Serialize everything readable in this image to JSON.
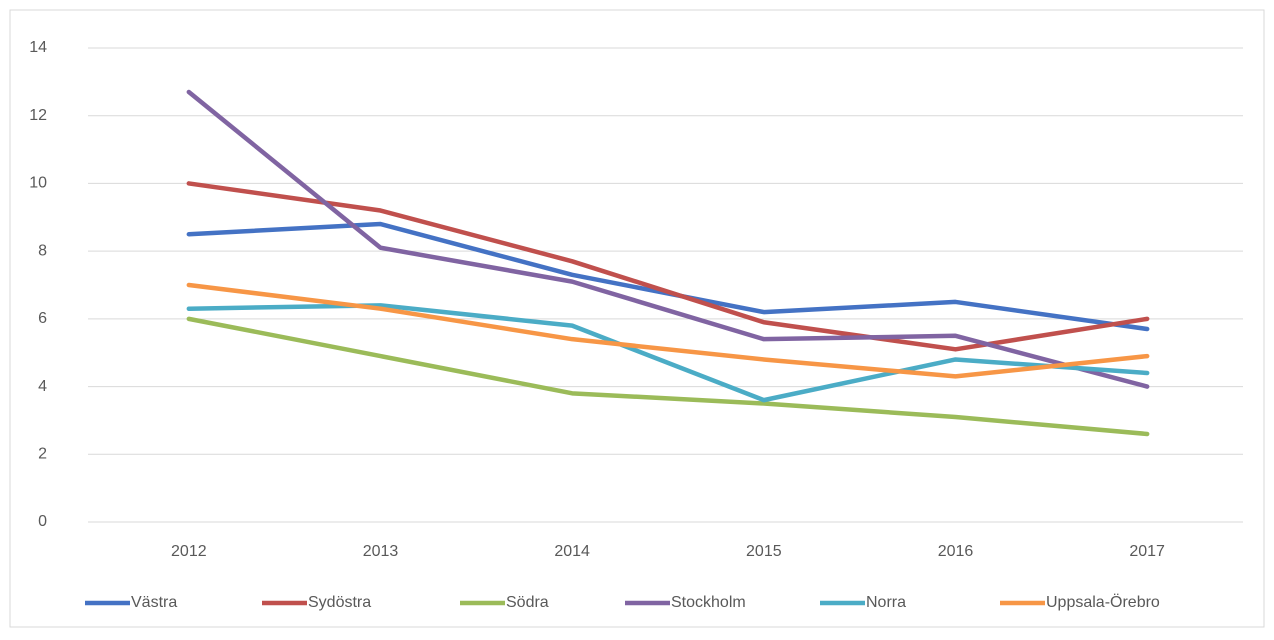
{
  "chart_data": {
    "type": "line",
    "categories": [
      "2012",
      "2013",
      "2014",
      "2015",
      "2016",
      "2017"
    ],
    "series": [
      {
        "name": "Västra",
        "color": "#4472c4",
        "values": [
          8.5,
          8.8,
          7.3,
          6.2,
          6.5,
          5.7
        ]
      },
      {
        "name": "Sydöstra",
        "color": "#c0504d",
        "values": [
          10.0,
          9.2,
          7.7,
          5.9,
          5.1,
          6.0
        ]
      },
      {
        "name": "Södra",
        "color": "#9bbb59",
        "values": [
          6.0,
          4.9,
          3.8,
          3.5,
          3.1,
          2.6
        ]
      },
      {
        "name": "Stockholm",
        "color": "#8064a2",
        "values": [
          12.7,
          8.1,
          7.1,
          5.4,
          5.5,
          4.0
        ]
      },
      {
        "name": "Norra",
        "color": "#4bacc6",
        "values": [
          6.3,
          6.4,
          5.8,
          3.6,
          4.8,
          4.4
        ]
      },
      {
        "name": "Uppsala-Örebro",
        "color": "#f79646",
        "values": [
          7.0,
          6.3,
          5.4,
          4.8,
          4.3,
          4.9
        ]
      }
    ],
    "ylim": [
      0,
      14
    ],
    "yticks": [
      0,
      2,
      4,
      6,
      8,
      10,
      12,
      14
    ],
    "grid": true,
    "legend": "bottom"
  }
}
